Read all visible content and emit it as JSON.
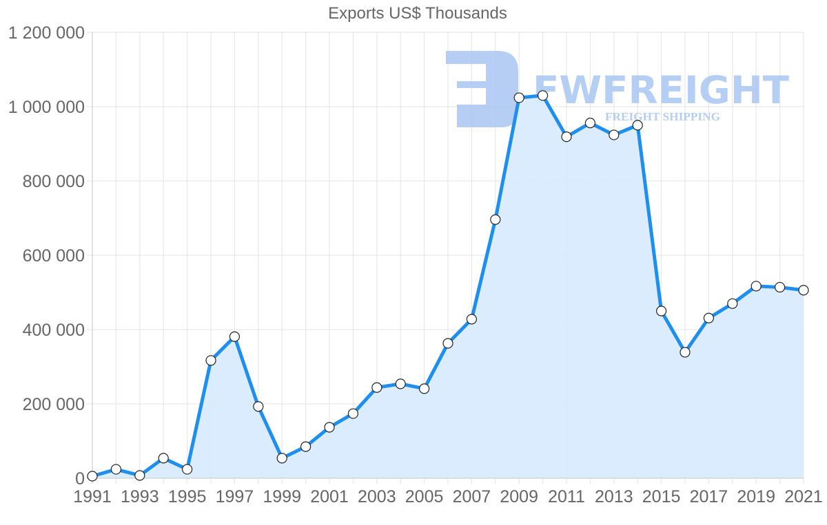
{
  "chart_data": {
    "type": "line",
    "title": "Exports US$ Thousands",
    "xlabel": "",
    "ylabel": "",
    "x": [
      1991,
      1992,
      1993,
      1994,
      1995,
      1996,
      1997,
      1998,
      1999,
      2000,
      2001,
      2002,
      2003,
      2004,
      2005,
      2006,
      2007,
      2008,
      2009,
      2010,
      2011,
      2012,
      2013,
      2014,
      2015,
      2016,
      2017,
      2018,
      2019,
      2020,
      2021
    ],
    "x_tick_labels": [
      "1991",
      "1993",
      "1995",
      "1997",
      "1999",
      "2001",
      "2003",
      "2005",
      "2007",
      "2009",
      "2011",
      "2013",
      "2015",
      "2017",
      "2019",
      "2021"
    ],
    "y_tick_labels": [
      "0",
      "200 000",
      "400 000",
      "600 000",
      "800 000",
      "1 000 000",
      "1 200 000"
    ],
    "y_ticks": [
      0,
      200000,
      400000,
      600000,
      800000,
      1000000,
      1200000
    ],
    "ylim": [
      0,
      1200000
    ],
    "xlim": [
      1991,
      2021
    ],
    "grid": true,
    "legend": null,
    "fill": true,
    "series": [
      {
        "name": "Exports US$ Thousands",
        "color": "#1e8fef",
        "fill_color": "#d8ebfd",
        "values": [
          5500,
          24000,
          7400,
          54000,
          24000,
          317000,
          381000,
          193000,
          54000,
          85000,
          137000,
          174000,
          244000,
          254000,
          241000,
          363000,
          428000,
          696000,
          1024000,
          1030000,
          919000,
          956000,
          924000,
          950000,
          450000,
          339000,
          431000,
          470000,
          517000,
          514000,
          506000
        ]
      }
    ]
  },
  "watermark": {
    "brand": "FWFREIGHT",
    "tagline": "FREIGHT SHIPPING",
    "color": "#a9c6f2"
  }
}
